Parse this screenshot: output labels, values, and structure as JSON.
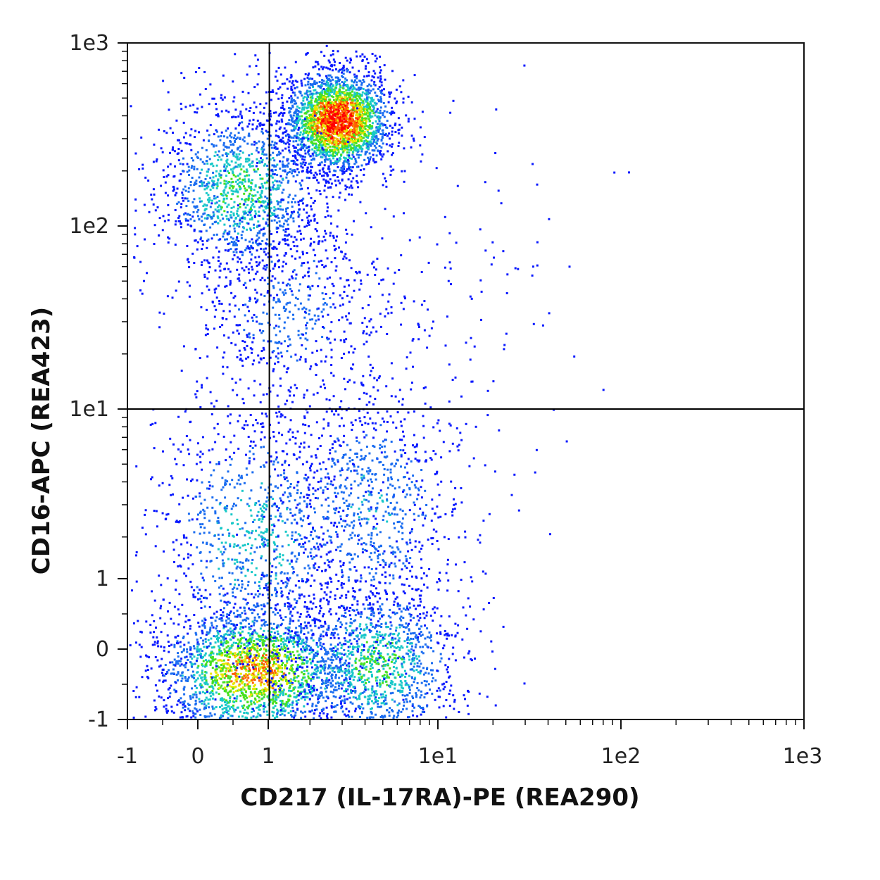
{
  "chart_data": {
    "type": "scatter",
    "subtype": "flow-cytometry-density-dot-plot",
    "title": "",
    "xlabel": "CD217 (IL-17RA)-PE (REA290)",
    "ylabel": "CD16-APC (REA423)",
    "x_scale": "biexponential (linear -1..1, log 1..1e3)",
    "y_scale": "biexponential (linear -1..1, log 1..1e3)",
    "xlim": [
      -1,
      1000
    ],
    "ylim": [
      -1,
      1000
    ],
    "x_ticks": [
      {
        "value": -1,
        "label": "-1"
      },
      {
        "value": 0,
        "label": "0"
      },
      {
        "value": 1,
        "label": "1"
      },
      {
        "value": 10,
        "label": "1e1"
      },
      {
        "value": 100,
        "label": "1e2"
      },
      {
        "value": 1000,
        "label": "1e3"
      }
    ],
    "y_ticks": [
      {
        "value": 1000,
        "label": "1e3"
      },
      {
        "value": 100,
        "label": "1e2"
      },
      {
        "value": 10,
        "label": "1e1"
      },
      {
        "value": 1,
        "label": "1"
      },
      {
        "value": 0,
        "label": "0"
      },
      {
        "value": -1,
        "label": "-1"
      }
    ],
    "quadrant_gate": {
      "x": 1.2,
      "y": 10
    },
    "grid": false,
    "legend": "none",
    "color_scale": [
      "#0a1aff",
      "#1a6cf0",
      "#18c8c8",
      "#48e020",
      "#e8e600",
      "#ff6000",
      "#ff0000"
    ],
    "populations": [
      {
        "center_x": 2.8,
        "center_y": 380,
        "density": "high"
      },
      {
        "center_x": 0.6,
        "center_y": 160,
        "density": "medium"
      },
      {
        "center_x": 0.8,
        "center_y": -0.3,
        "density": "medium-high"
      },
      {
        "center_x": 4.5,
        "center_y": -0.2,
        "density": "medium"
      }
    ]
  }
}
